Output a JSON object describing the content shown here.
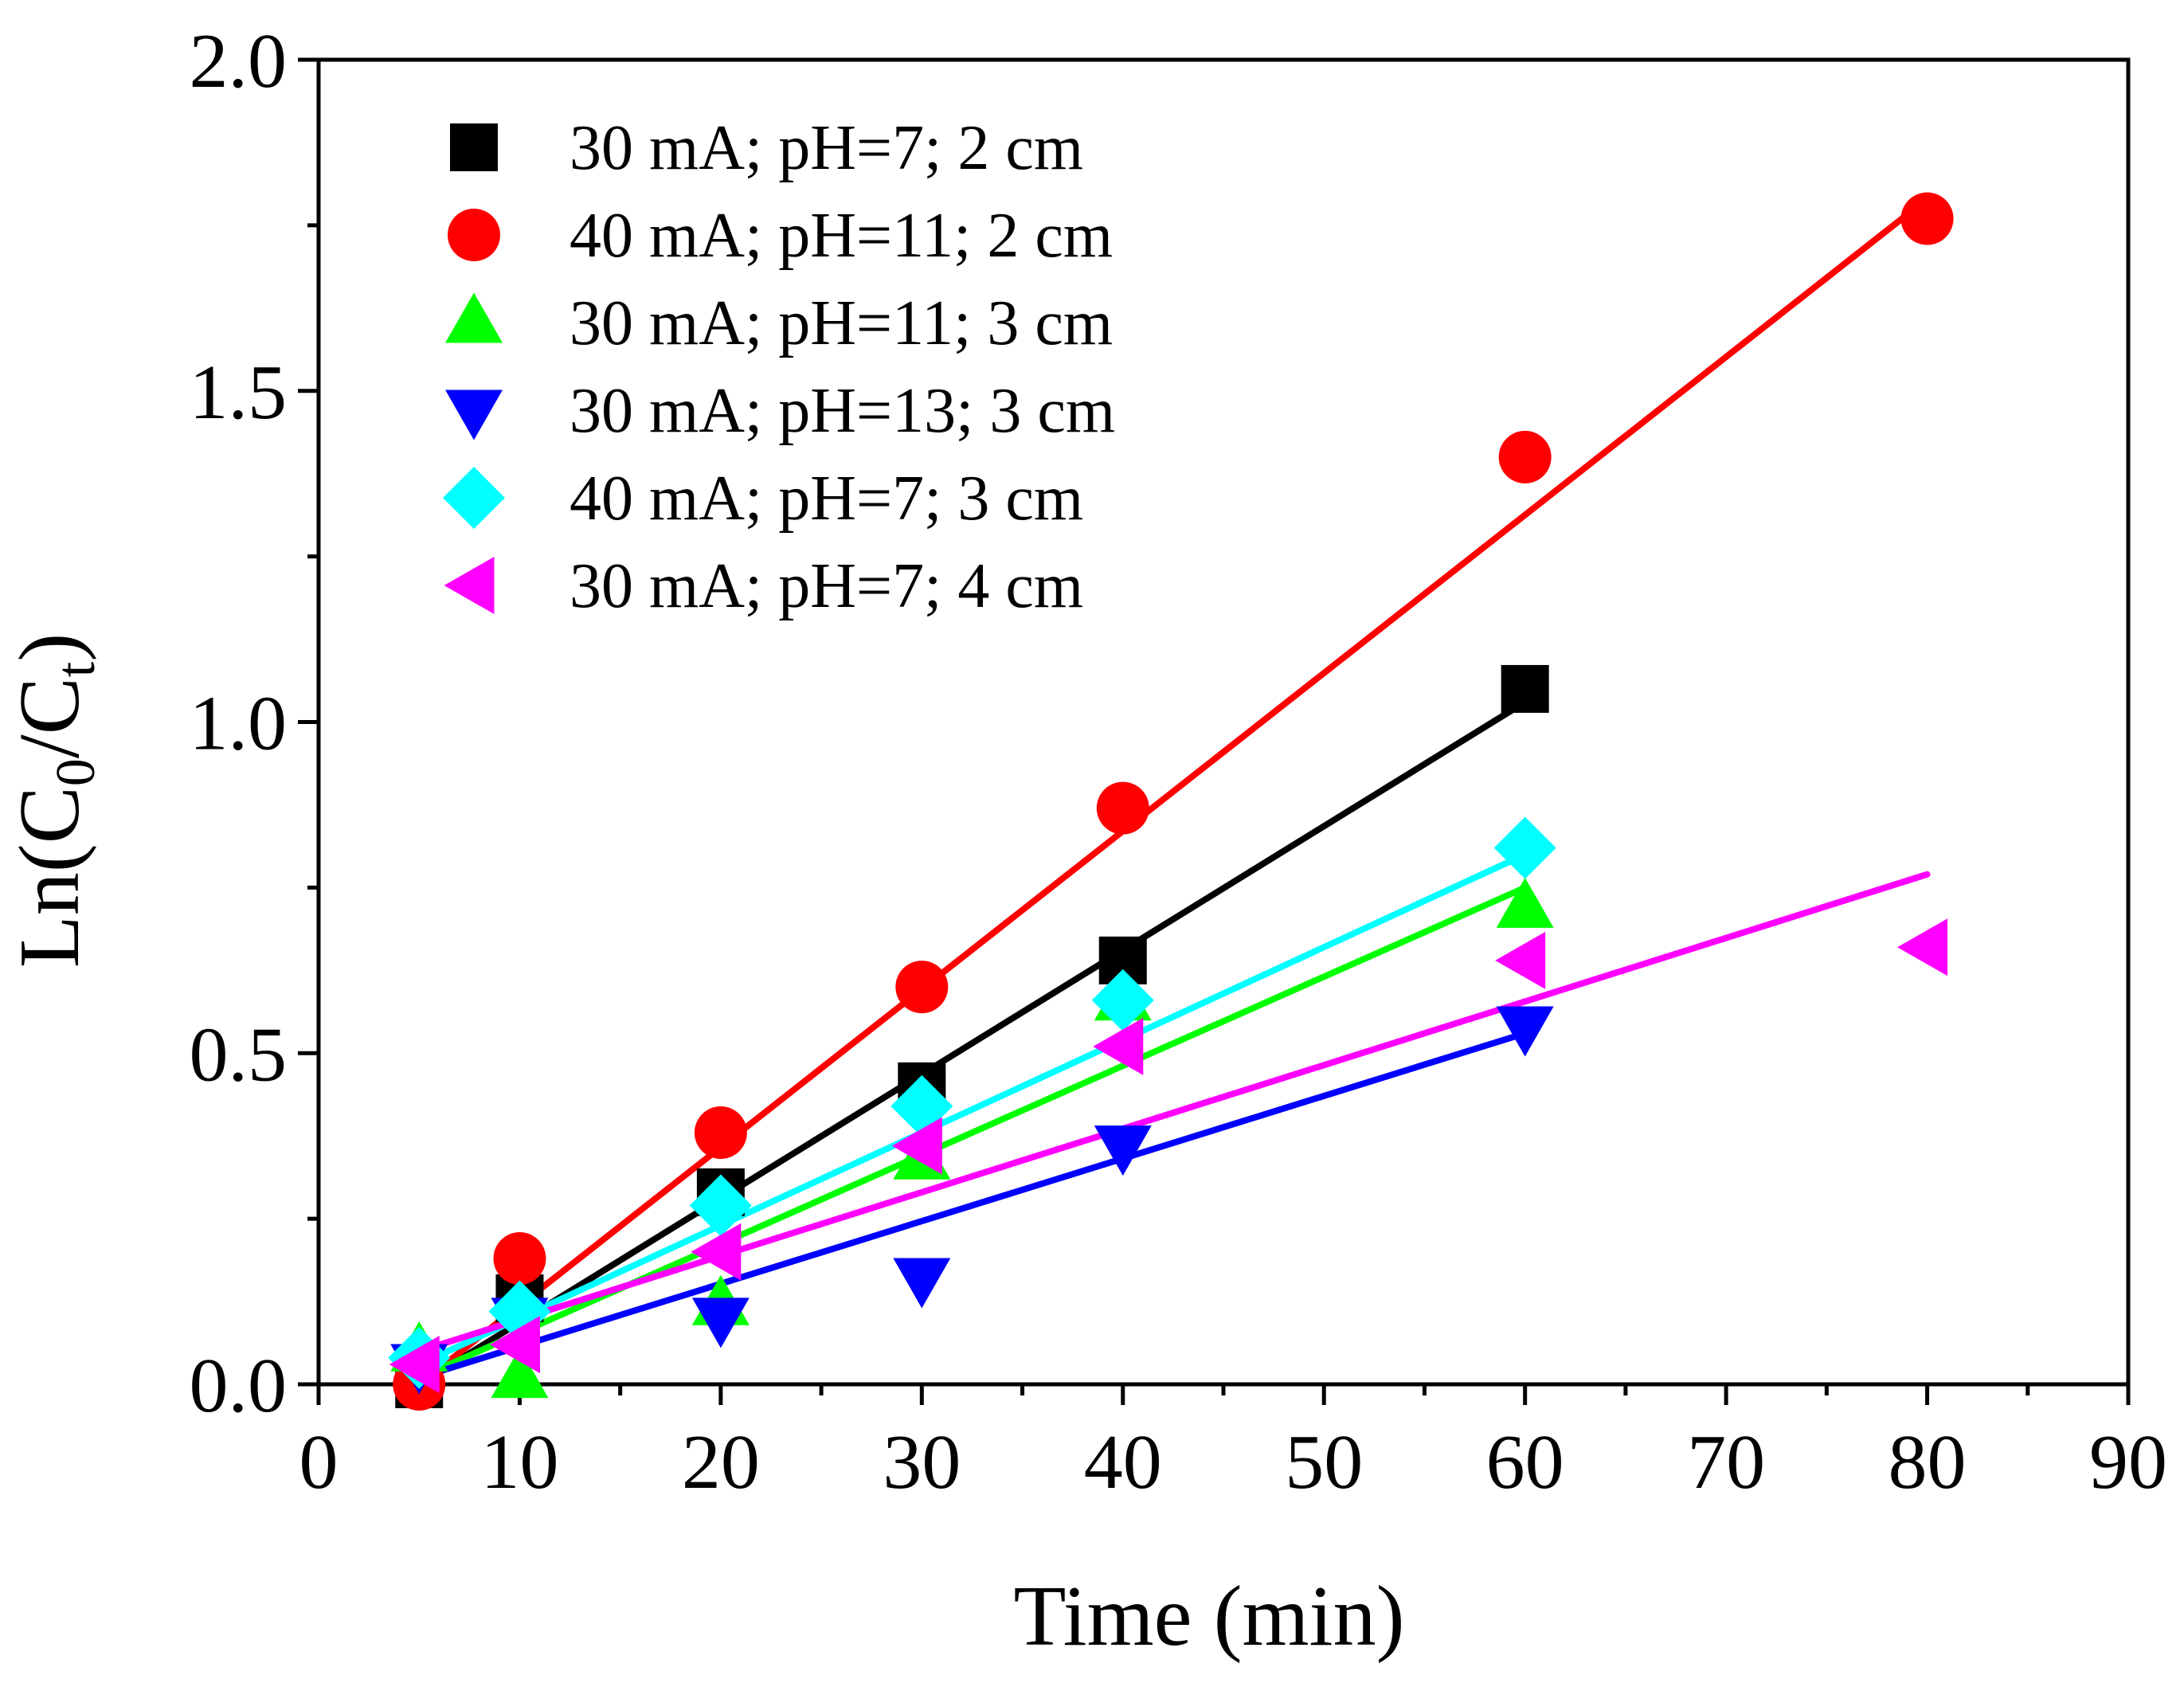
{
  "chart_data": {
    "type": "scatter",
    "title": "",
    "xlabel": "Time (min)",
    "ylabel": {
      "prefix": "Ln(C",
      "sub1": "0",
      "mid": "/C",
      "sub2": "t",
      "suffix": ")"
    },
    "xlim": [
      0,
      90
    ],
    "ylim": [
      0,
      2.0
    ],
    "x_major_ticks": [
      0,
      10,
      20,
      30,
      40,
      50,
      60,
      70,
      80,
      90
    ],
    "x_tick_labels": [
      "0",
      "10",
      "20",
      "30",
      "40",
      "50",
      "60",
      "70",
      "80",
      "90"
    ],
    "x_minor_ticks": [
      5,
      15,
      25,
      35,
      45,
      55,
      65,
      75,
      85
    ],
    "y_major_ticks": [
      0,
      0.5,
      1.0,
      1.5,
      2.0
    ],
    "y_tick_labels": [
      "0.0",
      "0.5",
      "1.0",
      "1.5",
      "2.0"
    ],
    "y_minor_ticks": [
      0.25,
      0.75,
      1.25,
      1.75
    ],
    "grid": false,
    "legend_position": "top-left",
    "series": [
      {
        "name": "30 mA; pH=7; 2 cm",
        "marker": "square",
        "color": "#000000",
        "x": [
          5,
          10,
          20,
          30,
          40,
          60
        ],
        "y": [
          0.0,
          0.13,
          0.29,
          0.45,
          0.64,
          1.05
        ],
        "fit": {
          "x": [
            5,
            60
          ],
          "y": [
            0.0,
            1.03
          ]
        }
      },
      {
        "name": "40 mA; pH=11; 2 cm",
        "marker": "circle",
        "color": "#ff0000",
        "x": [
          5,
          10,
          20,
          30,
          40,
          60,
          80
        ],
        "y": [
          0.0,
          0.19,
          0.38,
          0.6,
          0.87,
          1.4,
          1.76
        ],
        "fit": {
          "x": [
            5,
            80
          ],
          "y": [
            0.0,
            1.79
          ]
        }
      },
      {
        "name": "30 mA; pH=11; 3 cm",
        "marker": "triangle-up",
        "color": "#00ff00",
        "x": [
          5,
          10,
          20,
          30,
          40,
          60
        ],
        "y": [
          0.05,
          0.01,
          0.12,
          0.34,
          0.58,
          0.72
        ],
        "fit": {
          "x": [
            5,
            60
          ],
          "y": [
            0.01,
            0.75
          ]
        }
      },
      {
        "name": "30 mA; pH=13; 3 cm",
        "marker": "triangle-down",
        "color": "#0000ff",
        "x": [
          5,
          10,
          20,
          30,
          40,
          60
        ],
        "y": [
          0.03,
          0.1,
          0.1,
          0.16,
          0.36,
          0.54
        ],
        "fit": {
          "x": [
            5,
            60
          ],
          "y": [
            0.01,
            0.53
          ]
        }
      },
      {
        "name": "40 mA; pH=7; 3 cm",
        "marker": "diamond",
        "color": "#00ffff",
        "x": [
          5,
          10,
          20,
          30,
          40,
          60
        ],
        "y": [
          0.04,
          0.11,
          0.27,
          0.42,
          0.58,
          0.81
        ],
        "fit": {
          "x": [
            5,
            60
          ],
          "y": [
            0.03,
            0.8
          ]
        }
      },
      {
        "name": "30 mA; pH=7; 4 cm",
        "marker": "triangle-left",
        "color": "#ff00ff",
        "x": [
          5,
          10,
          20,
          30,
          40,
          60,
          80
        ],
        "y": [
          0.03,
          0.06,
          0.2,
          0.36,
          0.51,
          0.64,
          0.66
        ],
        "fit": {
          "x": [
            5,
            80
          ],
          "y": [
            0.05,
            0.77
          ]
        }
      }
    ]
  }
}
